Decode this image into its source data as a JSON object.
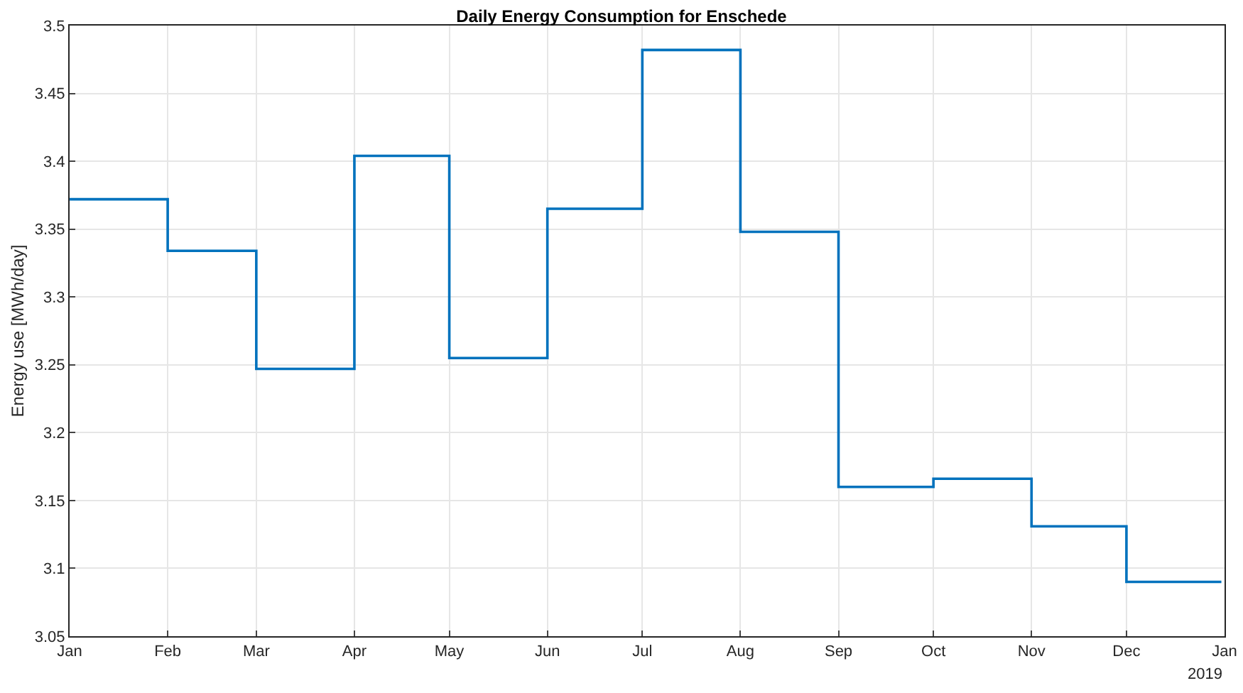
{
  "chart_data": {
    "type": "step",
    "title": "Daily Energy Consumption for Enschede",
    "ylabel": "Energy use [MWh/day]",
    "x": [
      "2019-01-01",
      "2019-02-01",
      "2019-03-01",
      "2019-04-01",
      "2019-05-01",
      "2019-06-01",
      "2019-07-01",
      "2019-08-01",
      "2019-09-01",
      "2019-10-01",
      "2019-11-01",
      "2019-12-01",
      "2019-12-31"
    ],
    "series": [
      {
        "color": "#0072bd",
        "values": [
          3.372,
          3.334,
          3.247,
          3.404,
          3.255,
          3.365,
          3.482,
          3.348,
          3.16,
          3.166,
          3.131,
          3.09,
          3.09
        ]
      }
    ],
    "xlim": [
      "2019-01-01",
      "2020-01-01"
    ],
    "xticks": [
      {
        "value": "2019-01-01",
        "label": "Jan"
      },
      {
        "value": "2019-02-01",
        "label": "Feb"
      },
      {
        "value": "2019-03-01",
        "label": "Mar"
      },
      {
        "value": "2019-04-01",
        "label": "Apr"
      },
      {
        "value": "2019-05-01",
        "label": "May"
      },
      {
        "value": "2019-06-01",
        "label": "Jun"
      },
      {
        "value": "2019-07-01",
        "label": "Jul"
      },
      {
        "value": "2019-08-01",
        "label": "Aug"
      },
      {
        "value": "2019-09-01",
        "label": "Sep"
      },
      {
        "value": "2019-10-01",
        "label": "Oct"
      },
      {
        "value": "2019-11-01",
        "label": "Nov"
      },
      {
        "value": "2019-12-01",
        "label": "Dec"
      },
      {
        "value": "2020-01-01",
        "label": "Jan"
      }
    ],
    "ylim": [
      3.05,
      3.5
    ],
    "yticks": [
      3.05,
      3.1,
      3.15,
      3.2,
      3.25,
      3.3,
      3.35,
      3.4,
      3.45,
      3.5
    ],
    "grid": true,
    "annotations": [
      "2019"
    ]
  }
}
